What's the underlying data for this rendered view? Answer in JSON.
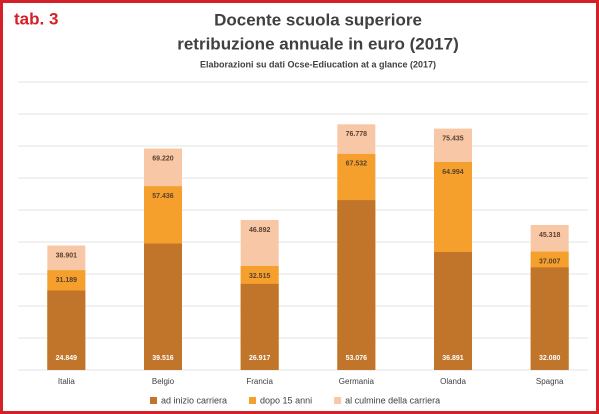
{
  "chart_data": {
    "type": "bar",
    "label": "tab. 3",
    "title": "Docente scuola superiore",
    "title_line2": "retribuzione annuale in euro (2017)",
    "subtitle": "Elaborazioni su dati Ocse-Ediucation at a glance (2017)",
    "categories": [
      "Italia",
      "Belgio",
      "Francia",
      "Germania",
      "Olanda",
      "Spagna"
    ],
    "series": [
      {
        "name": "ad inizio carriera",
        "color": "#c0752a",
        "values": [
          24849,
          39516,
          26917,
          53076,
          36891,
          32080
        ],
        "value_labels": [
          "24.849",
          "39.516",
          "26.917",
          "53.076",
          "36.891",
          "32.080"
        ]
      },
      {
        "name": "dopo 15 anni",
        "color": "#f5a02c",
        "values": [
          31189,
          57436,
          32515,
          67532,
          64994,
          37007
        ],
        "value_labels": [
          "31.189",
          "57.436",
          "32.515",
          "67.532",
          "64.994",
          "37.007"
        ]
      },
      {
        "name": "al culmine della carriera",
        "color": "#f8c8a6",
        "values": [
          38901,
          69220,
          46892,
          76778,
          75435,
          45318
        ],
        "value_labels": [
          "38.901",
          "69.220",
          "46.892",
          "76.778",
          "75.435",
          "45.318"
        ]
      }
    ],
    "ylim": [
      0,
      90000
    ],
    "yticks": [
      0,
      10000,
      20000,
      30000,
      40000,
      50000,
      60000,
      70000,
      80000,
      90000
    ],
    "grid": true
  }
}
